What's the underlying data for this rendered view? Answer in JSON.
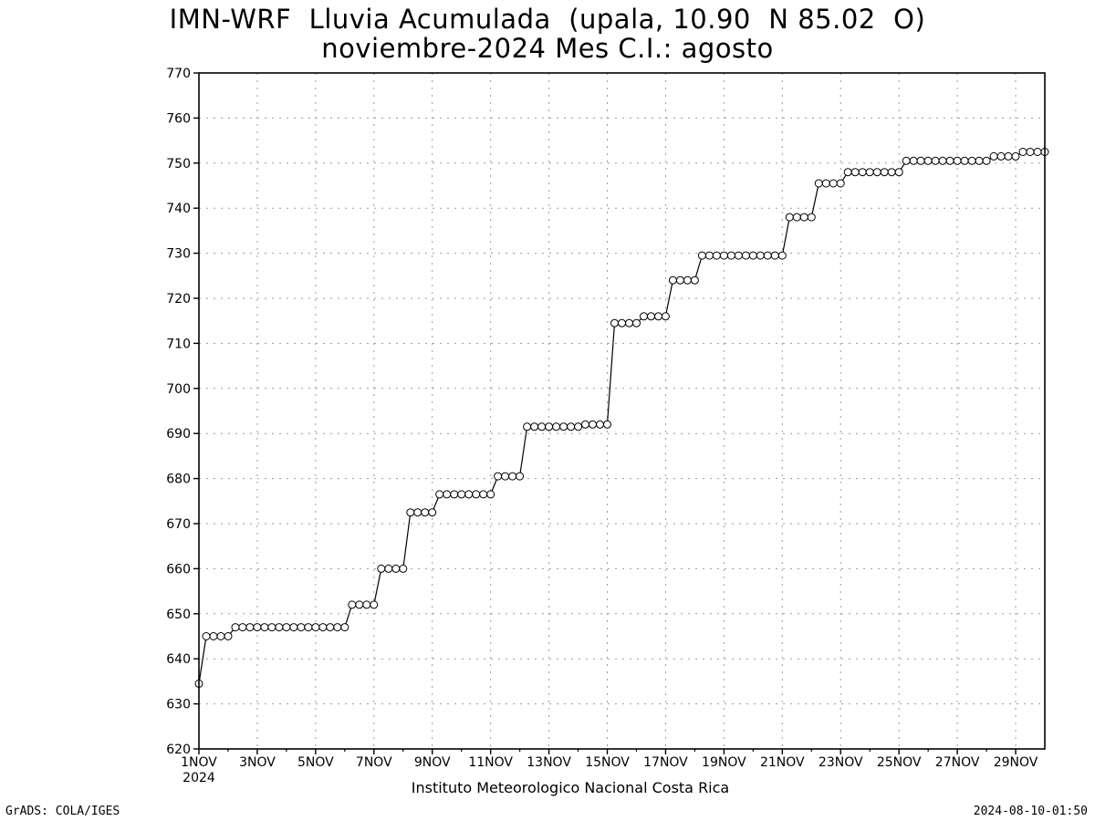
{
  "chart_data": {
    "type": "line",
    "title_line1": "IMN-WRF  Lluvia Acumulada  (upala, 10.90  N 85.02  O)",
    "title_line2": "noviembre-2024 Mes C.I.: agosto",
    "x_tick_labels": [
      "1NOV",
      "3NOV",
      "5NOV",
      "7NOV",
      "9NOV",
      "11NOV",
      "13NOV",
      "15NOV",
      "17NOV",
      "19NOV",
      "21NOV",
      "23NOV",
      "25NOV",
      "27NOV",
      "29NOV"
    ],
    "x_year_label": "2024",
    "x_range_days": [
      1,
      30
    ],
    "ylim": [
      620,
      770
    ],
    "y_ticks": [
      620,
      630,
      640,
      650,
      660,
      670,
      680,
      690,
      700,
      710,
      720,
      730,
      740,
      750,
      760,
      770
    ],
    "grid": true,
    "marker": "open-circle",
    "series": [
      {
        "x_day_start": 1,
        "x_step_days": 0.25,
        "values": [
          634.5,
          645,
          645,
          645,
          645,
          647,
          647,
          647,
          647,
          647,
          647,
          647,
          647,
          647,
          647,
          647,
          647,
          647,
          647,
          647,
          647,
          652,
          652,
          652,
          652,
          660,
          660,
          660,
          660,
          672.5,
          672.5,
          672.5,
          672.5,
          676.5,
          676.5,
          676.5,
          676.5,
          676.5,
          676.5,
          676.5,
          676.5,
          680.5,
          680.5,
          680.5,
          680.5,
          691.5,
          691.5,
          691.5,
          691.5,
          691.5,
          691.5,
          691.5,
          691.5,
          692,
          692,
          692,
          692,
          714.5,
          714.5,
          714.5,
          714.5,
          716,
          716,
          716,
          716,
          724,
          724,
          724,
          724,
          729.5,
          729.5,
          729.5,
          729.5,
          729.5,
          729.5,
          729.5,
          729.5,
          729.5,
          729.5,
          729.5,
          729.5,
          738,
          738,
          738,
          738,
          745.5,
          745.5,
          745.5,
          745.5,
          748,
          748,
          748,
          748,
          748,
          748,
          748,
          748,
          750.5,
          750.5,
          750.5,
          750.5,
          750.5,
          750.5,
          750.5,
          750.5,
          750.5,
          750.5,
          750.5,
          750.5,
          751.5,
          751.5,
          751.5,
          751.5,
          752.5,
          752.5,
          752.5,
          752.5
        ]
      }
    ]
  },
  "footer": {
    "institution": "Instituto Meteorologico Nacional Costa Rica",
    "credit": "GrADS: COLA/IGES",
    "timestamp": "2024-08-10-01:50"
  }
}
